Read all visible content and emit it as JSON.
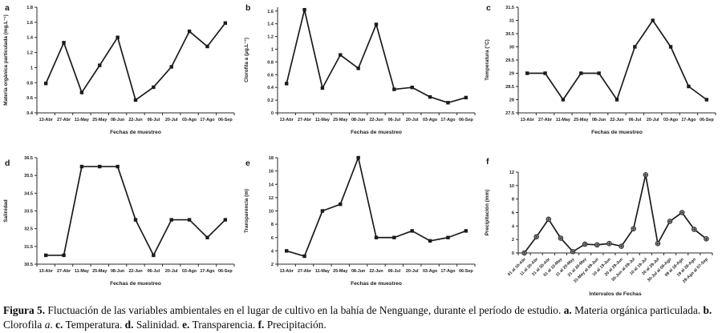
{
  "figure": {
    "caption_segments": [
      {
        "text": "Figura 5.",
        "bold": true
      },
      {
        "text": " Fluctuación de las variables ambientales en el lugar de cultivo en la bahía de Nenguange, durante el período de estudio. "
      },
      {
        "text": "a.",
        "bold": true
      },
      {
        "text": " Materia orgánica particulada. "
      },
      {
        "text": "b.",
        "bold": true
      },
      {
        "text": " Clorofila "
      },
      {
        "text": "a",
        "italic": true
      },
      {
        "text": ". "
      },
      {
        "text": "c.",
        "bold": true
      },
      {
        "text": " Temperatura. "
      },
      {
        "text": "d.",
        "bold": true
      },
      {
        "text": " Salinidad. "
      },
      {
        "text": "e.",
        "bold": true
      },
      {
        "text": " Transparencia. "
      },
      {
        "text": "f.",
        "bold": true
      },
      {
        "text": " Precipitación."
      }
    ],
    "colors": {
      "line": "#1b1b1b",
      "marker": "#1b1b1b",
      "marker_fill_f": "#999999",
      "text": "#1a1a1a",
      "axis": "#2a2a2a"
    }
  },
  "chart_data": [
    {
      "panel": "a",
      "type": "line",
      "title": "",
      "ylabel": "Materia orgánica particulada (mg.L⁻¹)",
      "xlabel": "Fechas de muestreo",
      "categories": [
        "13-Abr",
        "27-Abr",
        "11-May",
        "25-May",
        "08-Jun",
        "22-Jun",
        "06-Jul",
        "20-Jul",
        "03-Ago",
        "17-Ago",
        "06-Sep"
      ],
      "values": [
        0.79,
        1.33,
        0.67,
        1.03,
        1.4,
        0.57,
        0.74,
        1.01,
        1.48,
        1.28,
        1.59
      ],
      "yticks": [
        0.4,
        0.6,
        0.8,
        1,
        1.2,
        1.4,
        1.6,
        1.8
      ],
      "ylim": [
        0.4,
        1.8
      ],
      "grid": false,
      "marker": "square",
      "x_labels_rotated": false
    },
    {
      "panel": "b",
      "type": "line",
      "title": "",
      "ylabel": "Clorofila a (µg.L⁻¹)",
      "xlabel": "Fechas de muestreo",
      "categories": [
        "13-Abr",
        "27-Abr",
        "11-May",
        "25-May",
        "08-Jun",
        "22-Jun",
        "06-Jul",
        "20-Jul",
        "03-Ago",
        "17-Ago",
        "06-Sep"
      ],
      "values": [
        0.46,
        1.62,
        0.39,
        0.91,
        0.7,
        1.39,
        0.37,
        0.4,
        0.25,
        0.16,
        0.24
      ],
      "yticks": [
        0,
        0.2,
        0.4,
        0.6,
        0.8,
        1,
        1.2,
        1.4,
        1.6
      ],
      "ylim": [
        0,
        1.66
      ],
      "grid": false,
      "marker": "square",
      "x_labels_rotated": false
    },
    {
      "panel": "c",
      "type": "line",
      "title": "",
      "ylabel": "Temperatura (°C)",
      "xlabel": "Fechas de muestreo",
      "categories": [
        "13-Abr",
        "27-Abr",
        "11-May",
        "25-May",
        "08-Jun",
        "22-Jun",
        "06-Jul",
        "20-Jul",
        "03-Ago",
        "17-Ago",
        "06-Sep"
      ],
      "values": [
        29,
        29,
        28,
        29,
        29,
        28,
        30,
        31,
        30,
        28.5,
        28
      ],
      "yticks": [
        27.5,
        28,
        28.5,
        29,
        29.5,
        30,
        30.5,
        31,
        31.5
      ],
      "ylim": [
        27.5,
        31.5
      ],
      "grid": false,
      "marker": "square",
      "x_labels_rotated": false
    },
    {
      "panel": "d",
      "type": "line",
      "title": "",
      "ylabel": "Salinidad",
      "xlabel": "Fechas de muestreo",
      "categories": [
        "13-Abr",
        "27-Abr",
        "11-May",
        "25-May",
        "08-Jun",
        "22-Jun",
        "06-Jul",
        "20-Jul",
        "03-Ago",
        "17-Ago",
        "06-Sep"
      ],
      "values": [
        31,
        31,
        36,
        36,
        36,
        33,
        31,
        33,
        33,
        32,
        33
      ],
      "yticks": [
        30.5,
        31.5,
        32.5,
        33.5,
        34.5,
        35.5,
        36.5
      ],
      "ylim": [
        30.5,
        36.5
      ],
      "grid": false,
      "marker": "square",
      "x_labels_rotated": false
    },
    {
      "panel": "e",
      "type": "line",
      "title": "",
      "ylabel": "Transparencia (m)",
      "xlabel": "Fechas de muestreo",
      "categories": [
        "13-Abr",
        "27-Abr",
        "11-May",
        "25-May",
        "08-Jun",
        "22-Jun",
        "06-Jul",
        "20-Jul",
        "03-Ago",
        "17-Ago",
        "06-Sep"
      ],
      "values": [
        4,
        3.2,
        10,
        11,
        18,
        6,
        6,
        7,
        5.5,
        6,
        7
      ],
      "yticks": [
        2,
        4,
        6,
        8,
        10,
        12,
        14,
        16,
        18
      ],
      "ylim": [
        2,
        18
      ],
      "grid": false,
      "marker": "square",
      "x_labels_rotated": false
    },
    {
      "panel": "f",
      "type": "line",
      "title": "",
      "ylabel": "Precipitación (mm)",
      "xlabel": "Intervalos de Fechas",
      "categories": [
        "01 al 10-Abr",
        "11 al 20-Abr",
        "21 al 30-Abr",
        "01 al 10-May",
        "11 al 20-May",
        "21 al 30-May",
        "31-May al 09-Jun",
        "10 al 19-Jun",
        "20 al 29-Jun",
        "30-Jun al 09-Jul",
        "10 al 19-Jul",
        "20 al 29-Jul",
        "30-Jul al 08-Ago",
        "09 al 18-Ago",
        "19 al 28-Ago",
        "29-Ago al 07-Sep"
      ],
      "values": [
        0,
        2.4,
        5.0,
        2.2,
        0.2,
        1.3,
        1.2,
        1.4,
        1.0,
        3.6,
        11.6,
        1.4,
        4.7,
        6.0,
        3.5,
        2.1
      ],
      "yticks": [
        0,
        2,
        4,
        6,
        8,
        10,
        12
      ],
      "ylim": [
        0,
        12
      ],
      "grid": false,
      "marker": "circle-plus",
      "x_labels_rotated": true
    }
  ]
}
